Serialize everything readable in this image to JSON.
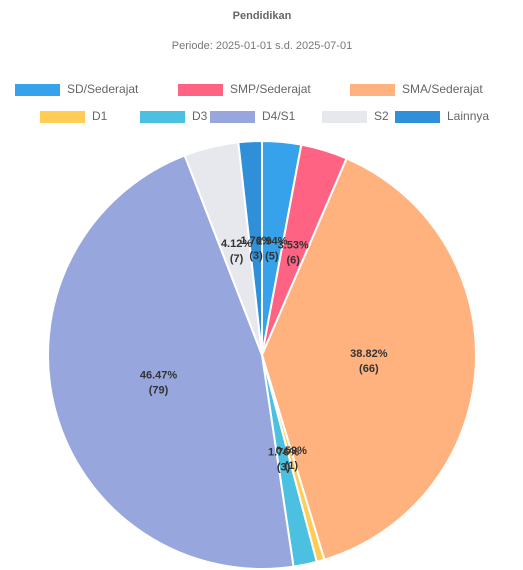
{
  "chart_data": {
    "type": "pie",
    "title": "Pendidikan",
    "subtitle": "Periode: 2025-01-01 s.d. 2025-07-01",
    "categories": [
      "SD/Sederajat",
      "SMP/Sederajat",
      "SMA/Sederajat",
      "D1",
      "D3",
      "D4/S1",
      "S2",
      "Lainnya"
    ],
    "values": [
      5,
      6,
      66,
      1,
      3,
      79,
      7,
      3
    ],
    "value_labels": [
      "(5)",
      "(6)",
      "(66)",
      "(1)",
      "(3)",
      "(79)",
      "(7)",
      "(3)"
    ],
    "percent_labels": [
      "2.94%",
      "3.53%",
      "38.82%",
      "0.59%",
      "1.76%",
      "46.47%",
      "4.12%",
      "1.76%"
    ],
    "colors": [
      "#36a2eb",
      "#ff6384",
      "#ffb27d",
      "#ffcd56",
      "#4bc0e0",
      "#97a6dc",
      "#e6e8ee",
      "#2f8fd8"
    ],
    "legend": "top"
  }
}
